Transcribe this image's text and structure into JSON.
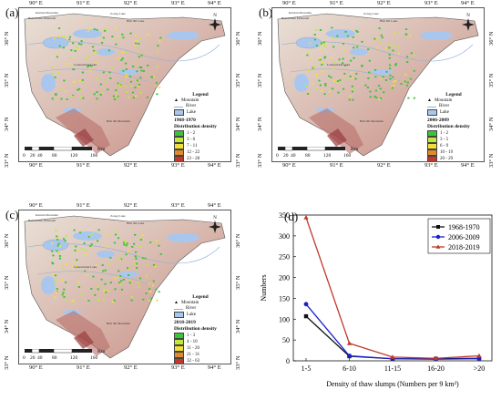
{
  "colors": {
    "lake": "#a9c7ee",
    "density": [
      "#39c43a",
      "#bfea3a",
      "#f1e03a",
      "#e08a2a",
      "#c0392b"
    ],
    "series": [
      "#111111",
      "#1a1fcf",
      "#c0392b"
    ]
  },
  "maps": [
    {
      "panel_label": "(a)",
      "period": "1968-1970",
      "classes": [
        "1 - 2",
        "3 - 6",
        "7 - 11",
        "12 - 22",
        "23 - 28"
      ]
    },
    {
      "panel_label": "(b)",
      "period": "2006-2009",
      "classes": [
        "1 - 2",
        "3 - 5",
        "6 - 9",
        "10 - 19",
        "20 - 29"
      ]
    },
    {
      "panel_label": "(c)",
      "period": "2018-2019",
      "classes": [
        "1 - 3",
        "4 - 10",
        "11 - 20",
        "21 - 31",
        "32 - 63"
      ]
    }
  ],
  "map_common": {
    "legend_title": "Legend",
    "mountain_label": "Mountain",
    "river_label": "River",
    "lake_label": "Lake",
    "density_title": "Distribution density",
    "lon_ticks": [
      "90° E",
      "91° E",
      "92° E",
      "93° E",
      "94° E"
    ],
    "lat_ticks": [
      "36° N",
      "35° N",
      "34° N",
      "33° N"
    ],
    "scale_ticks": [
      "0",
      "20",
      "40",
      "80",
      "120",
      "160"
    ],
    "scale_unit": "Km",
    "compass_n": "N",
    "mountain_names": [
      "Kunlun Mountain",
      "Bukadaban Mountain",
      "Hoh Xil Mountain"
    ],
    "lake_names": [
      "Zonag Lake",
      "Hoh Xil Lake",
      "Lexiewudan Lake"
    ]
  },
  "chart_data": {
    "panel_label": "(d)",
    "type": "line",
    "categories": [
      "1-5",
      "6-10",
      "11-15",
      "16-20",
      ">20"
    ],
    "series": [
      {
        "name": "1968-1970",
        "values": [
          107,
          11,
          5,
          5,
          6
        ]
      },
      {
        "name": "2006-2009",
        "values": [
          136,
          12,
          5,
          4,
          5
        ]
      },
      {
        "name": "2018-2019",
        "values": [
          344,
          42,
          9,
          6,
          12
        ]
      }
    ],
    "xlabel": "Density of thaw slumps (Numbers per 9 km²)",
    "ylabel": "Numbers",
    "ylim": [
      0,
      350
    ],
    "yticks": [
      "0",
      "50",
      "100",
      "150",
      "200",
      "250",
      "300",
      "350"
    ],
    "legend_placement": "top-right"
  }
}
